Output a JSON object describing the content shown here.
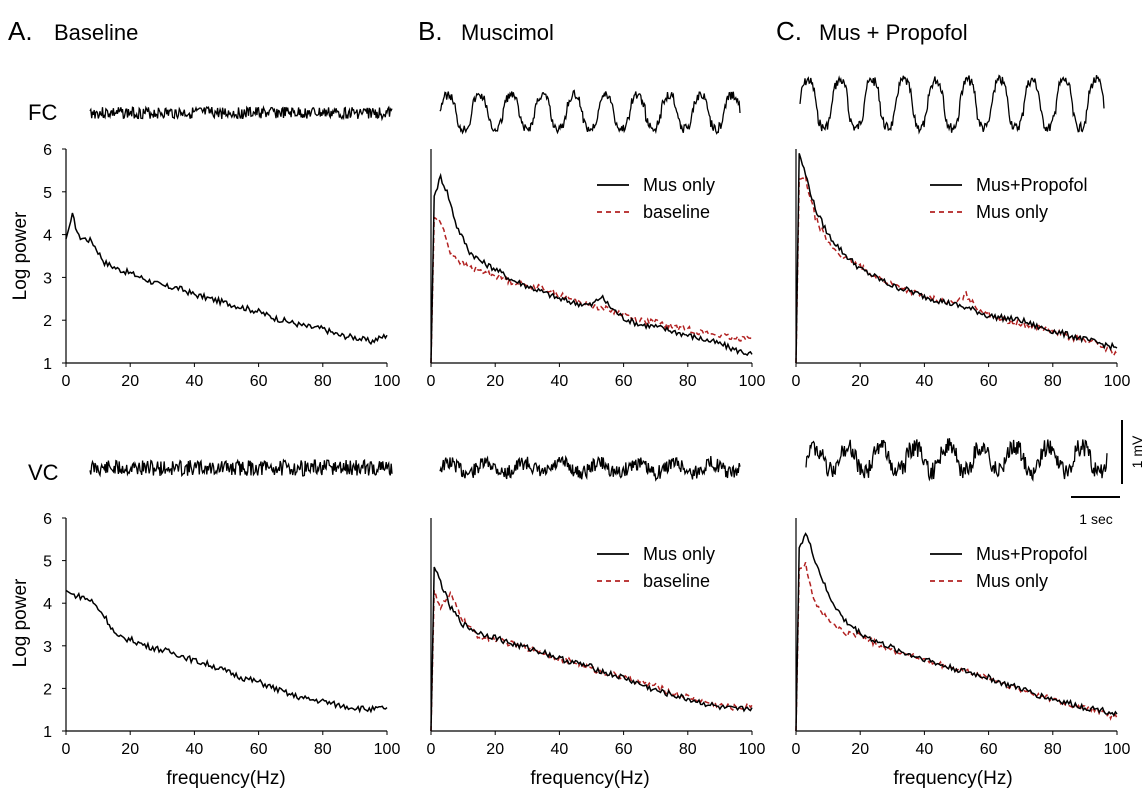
{
  "figure": {
    "panels": [
      {
        "letter": "A.",
        "title": "Baseline"
      },
      {
        "letter": "B.",
        "title": "Muscimol"
      },
      {
        "letter": "C.",
        "title": "Mus + Propofol"
      }
    ],
    "rows": [
      {
        "label": "FC"
      },
      {
        "label": "VC"
      }
    ],
    "ylabel": "Log power",
    "xlabel": "frequency(Hz)",
    "scale_bar": {
      "voltage": "1 mV",
      "time": "1 sec"
    },
    "colors": {
      "trace": "#000000",
      "dashed": "#b22222"
    }
  },
  "chart_data": [
    {
      "type": "line",
      "panel": "A",
      "row": "FC",
      "xlim": [
        0,
        100
      ],
      "ylim": [
        1,
        6
      ],
      "xticks": [
        0,
        20,
        40,
        60,
        80,
        100
      ],
      "yticks": [
        1,
        2,
        3,
        4,
        5,
        6
      ],
      "series": [
        {
          "style": "solid",
          "x": [
            0,
            2,
            4,
            8,
            12,
            16,
            20,
            25,
            30,
            35,
            40,
            45,
            50,
            55,
            60,
            65,
            70,
            75,
            80,
            85,
            90,
            95,
            100
          ],
          "y": [
            3.9,
            4.45,
            3.95,
            3.85,
            3.35,
            3.2,
            3.1,
            2.95,
            2.8,
            2.75,
            2.6,
            2.5,
            2.4,
            2.3,
            2.2,
            2.05,
            1.95,
            1.85,
            1.8,
            1.65,
            1.6,
            1.5,
            1.65
          ]
        }
      ]
    },
    {
      "type": "line",
      "panel": "B",
      "row": "FC",
      "xlim": [
        0,
        100
      ],
      "ylim": [
        1,
        6
      ],
      "xticks": [
        0,
        20,
        40,
        60,
        80,
        100
      ],
      "yticks": [
        1,
        2,
        3,
        4,
        5,
        6
      ],
      "series": [
        {
          "name": "Mus only",
          "style": "solid",
          "x": [
            0,
            1,
            3,
            5,
            8,
            12,
            16,
            20,
            25,
            30,
            35,
            40,
            45,
            50,
            53,
            56,
            60,
            65,
            70,
            75,
            80,
            85,
            90,
            95,
            100
          ],
          "y": [
            1,
            4.9,
            5.35,
            5.0,
            4.2,
            3.6,
            3.35,
            3.2,
            2.95,
            2.8,
            2.65,
            2.5,
            2.4,
            2.35,
            2.55,
            2.3,
            2.05,
            1.9,
            1.85,
            1.75,
            1.65,
            1.55,
            1.45,
            1.3,
            1.2
          ]
        },
        {
          "name": "baseline",
          "style": "dashed",
          "x": [
            0,
            1,
            3,
            6,
            10,
            15,
            20,
            25,
            30,
            35,
            40,
            45,
            50,
            55,
            60,
            65,
            70,
            75,
            80,
            85,
            90,
            95,
            100
          ],
          "y": [
            1,
            4.4,
            4.3,
            3.6,
            3.3,
            3.15,
            3.05,
            2.9,
            2.8,
            2.75,
            2.6,
            2.45,
            2.35,
            2.25,
            2.15,
            2.0,
            1.95,
            1.85,
            1.8,
            1.7,
            1.65,
            1.55,
            1.65
          ]
        }
      ]
    },
    {
      "type": "line",
      "panel": "C",
      "row": "FC",
      "xlim": [
        0,
        100
      ],
      "ylim": [
        1,
        6
      ],
      "xticks": [
        0,
        20,
        40,
        60,
        80,
        100
      ],
      "yticks": [
        1,
        2,
        3,
        4,
        5,
        6
      ],
      "series": [
        {
          "name": "Mus+Propofol",
          "style": "solid",
          "x": [
            0,
            1,
            3,
            6,
            10,
            15,
            20,
            25,
            30,
            35,
            40,
            45,
            50,
            55,
            60,
            65,
            70,
            75,
            80,
            85,
            90,
            95,
            100
          ],
          "y": [
            1,
            5.9,
            5.4,
            4.6,
            4.0,
            3.55,
            3.2,
            3.0,
            2.8,
            2.7,
            2.55,
            2.45,
            2.35,
            2.25,
            2.1,
            2.05,
            2.0,
            1.85,
            1.75,
            1.65,
            1.55,
            1.45,
            1.35
          ]
        },
        {
          "name": "Mus only",
          "style": "dashed",
          "x": [
            0,
            1,
            3,
            6,
            10,
            15,
            20,
            25,
            30,
            35,
            40,
            45,
            50,
            53,
            56,
            60,
            65,
            70,
            75,
            80,
            85,
            90,
            95,
            100
          ],
          "y": [
            1,
            5.3,
            5.3,
            4.4,
            3.8,
            3.45,
            3.25,
            3.0,
            2.85,
            2.7,
            2.55,
            2.45,
            2.4,
            2.6,
            2.3,
            2.15,
            2.0,
            1.9,
            1.85,
            1.75,
            1.6,
            1.55,
            1.4,
            1.2
          ]
        }
      ]
    },
    {
      "type": "line",
      "panel": "A",
      "row": "VC",
      "xlim": [
        0,
        100
      ],
      "ylim": [
        1,
        6
      ],
      "xticks": [
        0,
        20,
        40,
        60,
        80,
        100
      ],
      "yticks": [
        1,
        2,
        3,
        4,
        5,
        6
      ],
      "series": [
        {
          "style": "solid",
          "x": [
            0,
            2,
            5,
            8,
            12,
            16,
            20,
            25,
            30,
            35,
            40,
            45,
            50,
            55,
            60,
            65,
            70,
            75,
            80,
            85,
            90,
            95,
            100
          ],
          "y": [
            4.3,
            4.2,
            4.15,
            4.05,
            3.7,
            3.2,
            3.15,
            3.0,
            2.9,
            2.8,
            2.65,
            2.55,
            2.4,
            2.25,
            2.15,
            2.0,
            1.85,
            1.75,
            1.7,
            1.6,
            1.55,
            1.5,
            1.55
          ]
        }
      ]
    },
    {
      "type": "line",
      "panel": "B",
      "row": "VC",
      "xlim": [
        0,
        100
      ],
      "ylim": [
        1,
        6
      ],
      "xticks": [
        0,
        20,
        40,
        60,
        80,
        100
      ],
      "yticks": [
        1,
        2,
        3,
        4,
        5,
        6
      ],
      "series": [
        {
          "name": "Mus only",
          "style": "solid",
          "x": [
            0,
            1,
            3,
            6,
            10,
            15,
            20,
            25,
            30,
            35,
            40,
            45,
            50,
            55,
            60,
            65,
            70,
            75,
            80,
            85,
            90,
            95,
            100
          ],
          "y": [
            1,
            4.85,
            4.5,
            3.9,
            3.5,
            3.3,
            3.2,
            3.05,
            2.95,
            2.85,
            2.7,
            2.6,
            2.5,
            2.35,
            2.25,
            2.1,
            1.95,
            1.85,
            1.75,
            1.65,
            1.55,
            1.5,
            1.55
          ]
        },
        {
          "name": "baseline",
          "style": "dashed",
          "x": [
            0,
            1,
            3,
            6,
            10,
            15,
            20,
            25,
            30,
            35,
            40,
            45,
            50,
            55,
            60,
            65,
            70,
            75,
            80,
            85,
            90,
            95,
            100
          ],
          "y": [
            1,
            4.3,
            3.9,
            4.2,
            3.6,
            3.2,
            3.15,
            3.05,
            2.95,
            2.85,
            2.7,
            2.6,
            2.45,
            2.35,
            2.25,
            2.15,
            2.05,
            1.9,
            1.8,
            1.7,
            1.6,
            1.55,
            1.6
          ]
        }
      ]
    },
    {
      "type": "line",
      "panel": "C",
      "row": "VC",
      "xlim": [
        0,
        100
      ],
      "ylim": [
        1,
        6
      ],
      "xticks": [
        0,
        20,
        40,
        60,
        80,
        100
      ],
      "yticks": [
        1,
        2,
        3,
        4,
        5,
        6
      ],
      "series": [
        {
          "name": "Mus+Propofol",
          "style": "solid",
          "x": [
            0,
            1,
            3,
            6,
            10,
            15,
            20,
            25,
            30,
            35,
            40,
            45,
            50,
            55,
            60,
            65,
            70,
            75,
            80,
            85,
            90,
            95,
            100
          ],
          "y": [
            1,
            5.3,
            5.65,
            5.0,
            4.2,
            3.6,
            3.3,
            3.1,
            2.95,
            2.8,
            2.7,
            2.55,
            2.45,
            2.35,
            2.25,
            2.1,
            2.0,
            1.85,
            1.75,
            1.65,
            1.55,
            1.5,
            1.4
          ]
        },
        {
          "name": "Mus only",
          "style": "dashed",
          "x": [
            0,
            1,
            3,
            6,
            10,
            15,
            20,
            25,
            30,
            35,
            40,
            45,
            50,
            55,
            60,
            65,
            70,
            75,
            80,
            85,
            90,
            95,
            100
          ],
          "y": [
            1,
            4.8,
            4.9,
            4.0,
            3.6,
            3.3,
            3.25,
            3.05,
            2.9,
            2.8,
            2.65,
            2.55,
            2.45,
            2.35,
            2.25,
            2.1,
            1.95,
            1.85,
            1.75,
            1.6,
            1.55,
            1.45,
            1.3
          ]
        }
      ]
    }
  ]
}
